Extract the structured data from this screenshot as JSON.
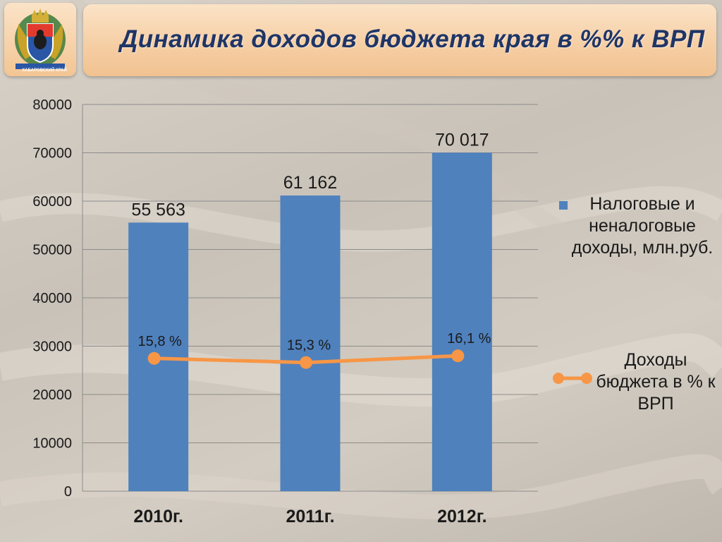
{
  "header": {
    "title": "Динамика доходов бюджета края в %% к ВРП",
    "emblem_caption": "ХАБАРОВСКИЙ КРАЙ"
  },
  "colors": {
    "bar": "#4f81bd",
    "line": "#f79646",
    "title": "#1f3566",
    "grid": "#8c8c8c"
  },
  "legend": {
    "bar_label": "Налоговые и неналоговые доходы, млн.руб.",
    "line_label": "Доходы бюджета в % к ВРП"
  },
  "chart_data": {
    "type": "bar",
    "categories": [
      "2010г.",
      "2011г.",
      "2012г."
    ],
    "ylim": [
      0,
      80000
    ],
    "yticks": [
      "0",
      "10000",
      "20000",
      "30000",
      "40000",
      "50000",
      "60000",
      "70000",
      "80000"
    ],
    "grid": true,
    "legend_position": "right",
    "series": [
      {
        "name": "Налоговые и неналоговые доходы, млн.руб.",
        "type": "bar",
        "values": [
          55563,
          61162,
          70017
        ],
        "labels": [
          "55 563",
          "61 162",
          "70 017"
        ]
      },
      {
        "name": "Доходы бюджета в % к ВРП",
        "type": "line",
        "values": [
          15.8,
          15.3,
          16.1
        ],
        "labels": [
          "15,8 %",
          "15,3 %",
          "16,1 %"
        ]
      }
    ]
  }
}
